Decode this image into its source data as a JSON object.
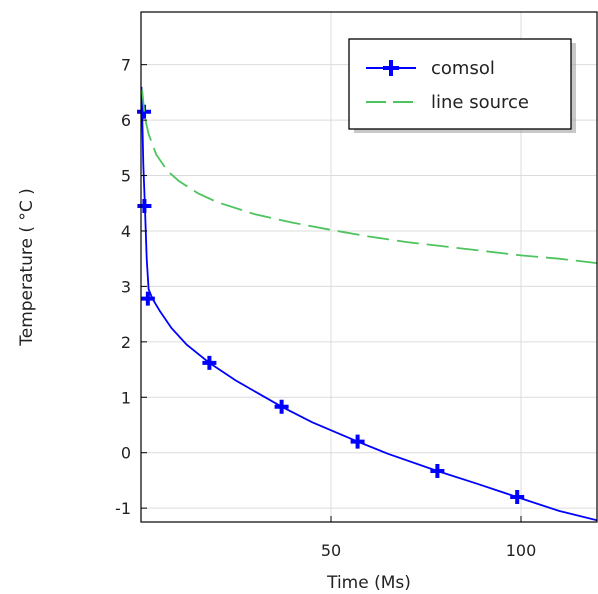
{
  "chart_data": {
    "type": "line",
    "xlabel": "Time (Ms)",
    "ylabel": "Temperature ( °C   )",
    "xlim": [
      0,
      120
    ],
    "ylim": [
      -1.25,
      7.95
    ],
    "xticks": [
      50,
      100
    ],
    "yticks": [
      -1,
      0,
      1,
      2,
      3,
      4,
      5,
      6,
      7
    ],
    "grid": true,
    "legend_position": "top-right",
    "series": [
      {
        "name": "comsol",
        "color": "#0000ff",
        "style": "solid-with-plus-markers",
        "x": [
          0.1,
          0.3,
          0.6,
          1.0,
          1.5,
          2.0,
          3.0,
          5.0,
          8.0,
          12.0,
          18.0,
          25.0,
          37.0,
          45.0,
          57.0,
          65.0,
          78.0,
          88.0,
          99.0,
          110.0,
          120.0
        ],
        "y": [
          6.6,
          6.2,
          5.2,
          4.5,
          3.5,
          2.95,
          2.78,
          2.55,
          2.25,
          1.95,
          1.62,
          1.3,
          0.83,
          0.55,
          0.2,
          -0.02,
          -0.33,
          -0.55,
          -0.8,
          -1.05,
          -1.22
        ],
        "markers_x": [
          0.8,
          0.9,
          1.8,
          18.0,
          37.0,
          57.0,
          78.0,
          99.0
        ],
        "markers_y": [
          6.15,
          4.45,
          2.78,
          1.62,
          0.83,
          0.2,
          -0.33,
          -0.8
        ]
      },
      {
        "name": "line source",
        "color": "#4ec45e",
        "style": "dashed",
        "x": [
          0.3,
          1.0,
          2.0,
          4.0,
          7.0,
          10.0,
          15.0,
          20.0,
          30.0,
          40.0,
          50.0,
          60.0,
          70.0,
          80.0,
          90.0,
          100.0,
          110.0,
          120.0
        ],
        "y": [
          6.55,
          6.05,
          5.75,
          5.38,
          5.08,
          4.9,
          4.68,
          4.52,
          4.3,
          4.15,
          4.02,
          3.9,
          3.8,
          3.72,
          3.64,
          3.56,
          3.5,
          3.42
        ]
      }
    ]
  }
}
